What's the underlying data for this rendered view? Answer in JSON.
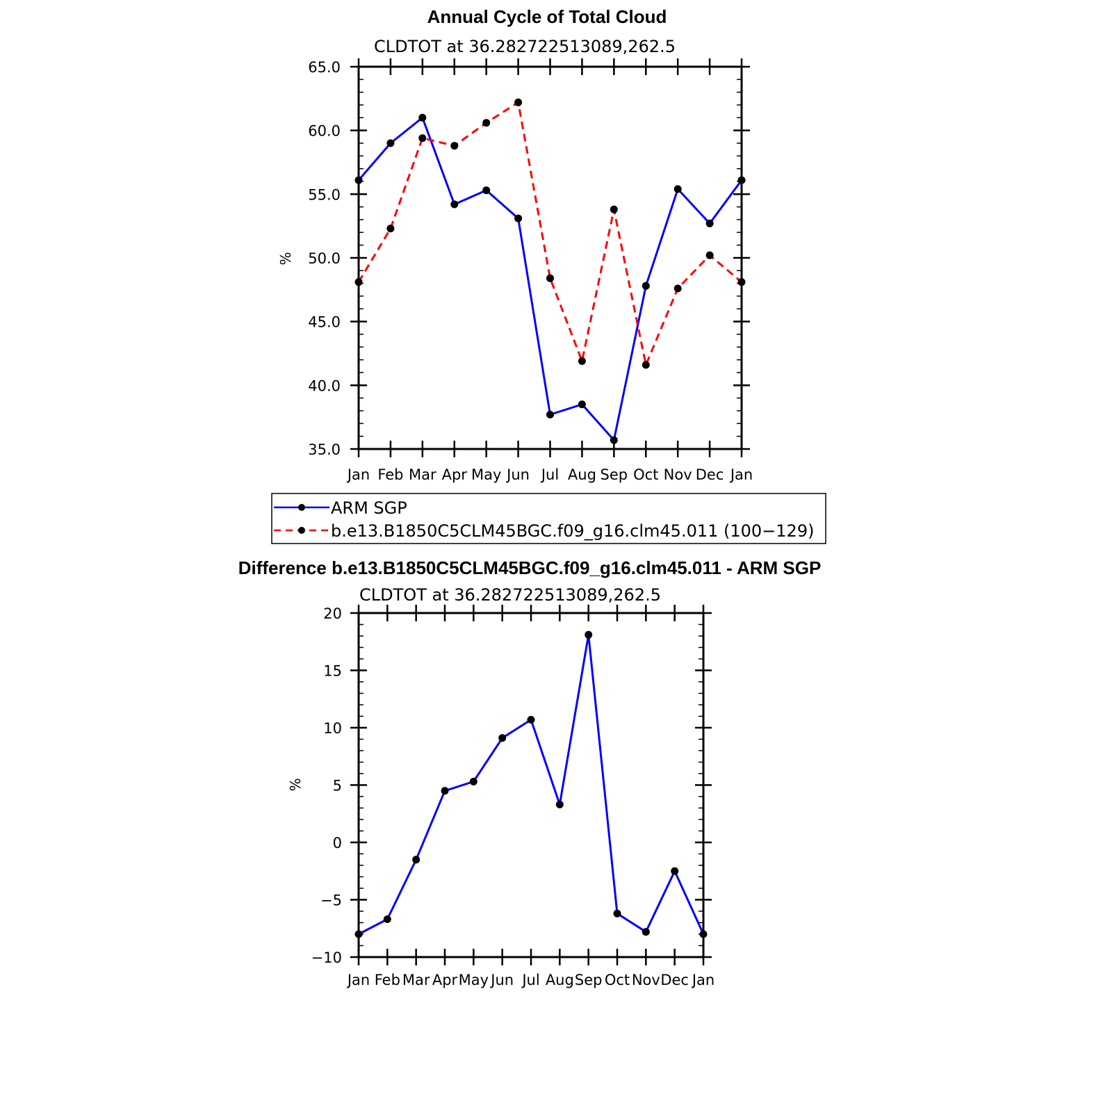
{
  "chart_data": [
    {
      "type": "line",
      "title": "Annual Cycle of Total Cloud",
      "subtitle": "CLDTOT at 36.282722513089,262.5",
      "ylabel": "%",
      "ylim": [
        35,
        65
      ],
      "yticks": [
        35,
        40,
        45,
        50,
        55,
        60,
        65
      ],
      "ytick_labels": [
        "35.0",
        "40.0",
        "45.0",
        "50.0",
        "55.0",
        "60.0",
        "65.0"
      ],
      "categories": [
        "Jan",
        "Feb",
        "Mar",
        "Apr",
        "May",
        "Jun",
        "Jul",
        "Aug",
        "Sep",
        "Oct",
        "Nov",
        "Dec",
        "Jan"
      ],
      "grid": false,
      "legend_position": "bottom",
      "series": [
        {
          "name": "ARM SGP",
          "color": "#0000ff",
          "dash": "solid",
          "values": [
            56.1,
            59.0,
            61.0,
            54.2,
            55.3,
            53.1,
            37.7,
            38.5,
            35.7,
            47.8,
            55.4,
            52.7,
            56.1
          ]
        },
        {
          "name": "b.e13.B1850C5CLM45BGC.f09_g16.clm45.011 (100−129)",
          "color": "#ff0000",
          "dash": "dashed",
          "values": [
            48.1,
            52.3,
            59.4,
            58.8,
            60.6,
            62.2,
            48.4,
            41.9,
            53.8,
            41.6,
            47.6,
            50.2,
            48.1
          ]
        }
      ]
    },
    {
      "type": "line",
      "title": "Difference b.e13.B1850C5CLM45BGC.f09_g16.clm45.011 - ARM SGP",
      "subtitle": "CLDTOT at 36.282722513089,262.5",
      "ylabel": "%",
      "ylim": [
        -10,
        20
      ],
      "yticks": [
        -10,
        -5,
        0,
        5,
        10,
        15,
        20
      ],
      "ytick_labels": [
        "−10",
        "−5",
        "0",
        "5",
        "10",
        "15",
        "20"
      ],
      "categories": [
        "Jan",
        "Feb",
        "Mar",
        "Apr",
        "May",
        "Jun",
        "Jul",
        "Aug",
        "Sep",
        "Oct",
        "Nov",
        "Dec",
        "Jan"
      ],
      "grid": false,
      "series": [
        {
          "color": "#0000ff",
          "dash": "solid",
          "values": [
            -8.0,
            -6.7,
            -1.5,
            4.5,
            5.3,
            9.1,
            10.7,
            3.3,
            18.1,
            -6.2,
            -7.8,
            -2.5,
            -8.0
          ]
        }
      ]
    }
  ]
}
